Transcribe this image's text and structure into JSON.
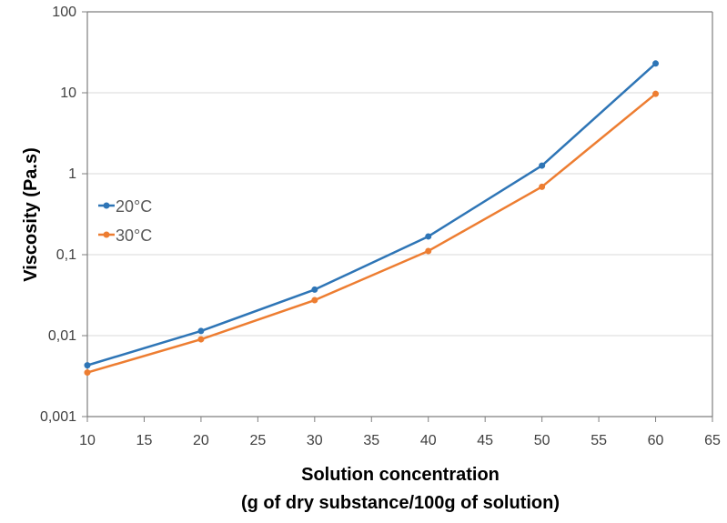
{
  "chart_data": {
    "type": "line",
    "title": "",
    "xlabel": "Solution concentration",
    "xlabel_line2": "(g of dry substance/100g of solution)",
    "ylabel": "Viscosity (Pa.s)",
    "x": [
      10,
      20,
      30,
      40,
      50,
      60
    ],
    "series": [
      {
        "name": "20°C",
        "color": "#2E75B6",
        "values": [
          0.0043,
          0.0114,
          0.037,
          0.168,
          1.26,
          23
        ]
      },
      {
        "name": "30°C",
        "color": "#ED7D31",
        "values": [
          0.0035,
          0.009,
          0.0274,
          0.111,
          0.69,
          9.7
        ]
      }
    ],
    "xlim": [
      10,
      65
    ],
    "ylim": [
      0.001,
      100
    ],
    "yscale": "log",
    "x_ticks": [
      "10",
      "15",
      "20",
      "25",
      "30",
      "35",
      "40",
      "45",
      "50",
      "55",
      "60",
      "65"
    ],
    "y_ticks": [
      "100",
      "10",
      "1",
      "0,1",
      "0,01",
      "0,001"
    ],
    "grid": "horizontal",
    "legend_position": "upper-left-inside"
  }
}
